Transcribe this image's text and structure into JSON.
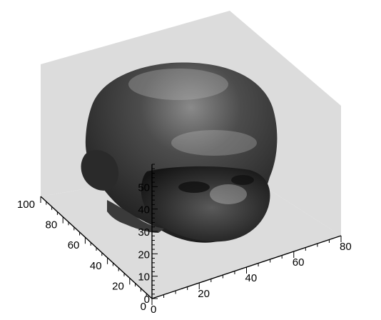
{
  "chart_data": {
    "type": "3d-isosurface",
    "x_axis": {
      "range": [
        0,
        80
      ],
      "ticks": [
        "0",
        "20",
        "40",
        "60",
        "80"
      ]
    },
    "y_axis": {
      "range": [
        0,
        100
      ],
      "ticks": [
        "0",
        "20",
        "40",
        "60",
        "80",
        "100"
      ]
    },
    "z_axis": {
      "range": [
        0,
        60
      ],
      "ticks": [
        "0",
        "10",
        "20",
        "30",
        "40",
        "50"
      ]
    },
    "grid": false,
    "legend": "none",
    "subject": "head-isosurface",
    "colors": {
      "backdrop": "#dcdcdc",
      "surface_dark": "#1f1f1f",
      "surface_mid": "#4a4a4a",
      "surface_light": "#c8c8c8",
      "axes": "#000000"
    }
  }
}
